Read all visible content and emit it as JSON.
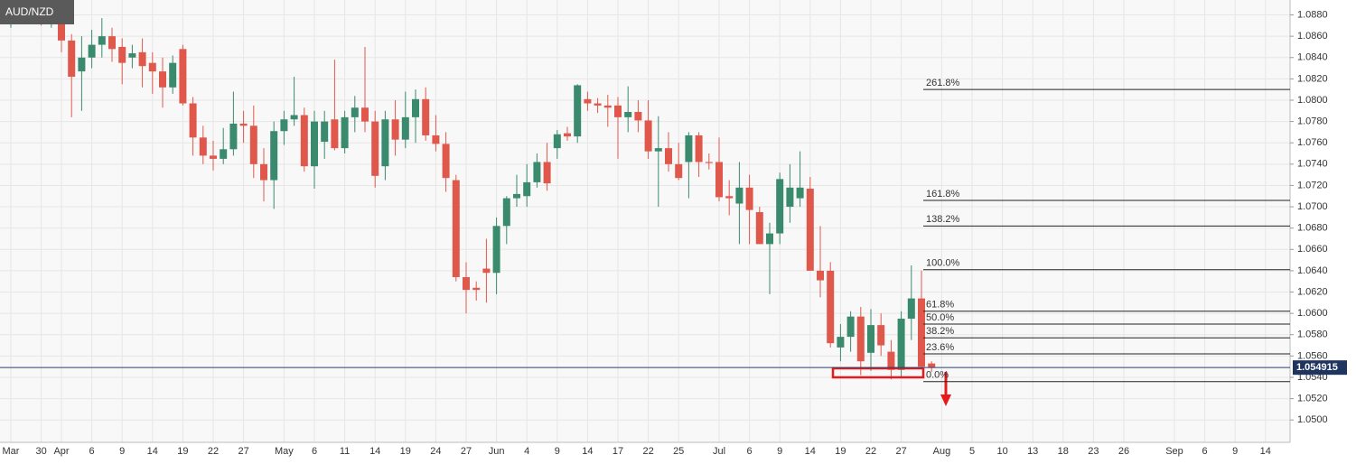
{
  "chart_data": {
    "type": "candlestick",
    "title": "AUD/NZD",
    "categories": [
      "Mar",
      null,
      null,
      "30",
      null,
      "Apr",
      null,
      null,
      "6",
      null,
      null,
      "9",
      null,
      null,
      "14",
      null,
      null,
      "19",
      null,
      null,
      "22",
      null,
      null,
      "27",
      null,
      null,
      null,
      "May",
      null,
      null,
      "6",
      null,
      null,
      "11",
      null,
      null,
      "14",
      null,
      null,
      "19",
      null,
      null,
      "24",
      null,
      null,
      "27",
      null,
      null,
      "Jun",
      null,
      null,
      "4",
      null,
      null,
      "9",
      null,
      null,
      "14",
      null,
      null,
      "17",
      null,
      null,
      "22",
      null,
      null,
      "25",
      null,
      null,
      null,
      "Jul",
      null,
      null,
      "6",
      null,
      null,
      "9",
      null,
      null,
      "14",
      null,
      null,
      "19",
      null,
      null,
      "22",
      null,
      null,
      "27",
      null,
      null,
      null,
      "Aug",
      null,
      null,
      "5",
      null,
      null,
      "10",
      null,
      null,
      "13",
      null,
      null,
      "18",
      null,
      null,
      "23",
      null,
      null,
      "26",
      null,
      null,
      null,
      null,
      "Sep",
      null,
      null,
      "6",
      null,
      null,
      "9",
      null,
      null,
      "14",
      null,
      null
    ],
    "open": [
      1.0878,
      1.0892,
      1.089,
      1.0888,
      1.0876,
      1.0877,
      1.0856,
      1.0827,
      1.084,
      1.0852,
      1.086,
      1.085,
      1.084,
      1.0845,
      1.0835,
      1.0827,
      1.0812,
      1.0848,
      1.0797,
      1.0765,
      1.0748,
      1.0745,
      1.0754,
      1.0778,
      1.0776,
      1.074,
      1.0725,
      1.0771,
      1.0782,
      1.0786,
      1.0738,
      1.0761,
      1.0782,
      1.0755,
      1.0784,
      1.0793,
      1.078,
      1.0738,
      1.0782,
      1.0763,
      1.0784,
      1.0801,
      1.0767,
      1.0759,
      1.0725,
      1.0634,
      1.0624,
      1.0642,
      1.0638,
      1.0682,
      1.0708,
      1.071,
      1.0723,
      1.0742,
      1.0755,
      1.0769,
      1.0766,
      1.0801,
      1.0797,
      1.0795,
      1.0795,
      1.0784,
      1.0789,
      1.0781,
      1.0752,
      1.0755,
      1.074,
      1.0742,
      1.0767,
      1.0742,
      1.0742,
      1.071,
      1.0703,
      1.0718,
      1.0695,
      1.0665,
      1.0675,
      1.07,
      1.0708,
      1.0717,
      1.064,
      1.064,
      1.0568,
      1.0578,
      1.0597,
      1.0563,
      1.0589,
      1.0564,
      1.0547,
      1.0595,
      1.0614,
      1.0553,
      null,
      null,
      null,
      null,
      null,
      null,
      null,
      null,
      null,
      null,
      null,
      null,
      null,
      null,
      null,
      null,
      null,
      null,
      null,
      null,
      null,
      null,
      null,
      null,
      null,
      null,
      null,
      null,
      null,
      null,
      null,
      null,
      null,
      null,
      null
    ],
    "high": [
      1.0894,
      1.0896,
      1.0894,
      1.0892,
      1.089,
      1.0886,
      1.0862,
      1.086,
      1.0866,
      1.0877,
      1.0868,
      1.0858,
      1.0852,
      1.0858,
      1.0845,
      1.084,
      1.0842,
      1.0852,
      1.0803,
      1.0776,
      1.0762,
      1.0774,
      1.0808,
      1.079,
      1.0795,
      1.0755,
      1.078,
      1.079,
      1.0822,
      1.0793,
      1.079,
      1.079,
      1.0838,
      1.079,
      1.0804,
      1.085,
      1.079,
      1.079,
      1.08,
      1.0808,
      1.081,
      1.0812,
      1.0786,
      1.077,
      1.073,
      1.0648,
      1.063,
      1.067,
      1.069,
      1.071,
      1.073,
      1.074,
      1.075,
      1.076,
      1.0772,
      1.0775,
      1.0815,
      1.0808,
      1.0802,
      1.0805,
      1.0803,
      1.0813,
      1.08,
      1.08,
      1.0785,
      1.077,
      1.076,
      1.077,
      1.077,
      1.075,
      1.0765,
      1.0725,
      1.0742,
      1.073,
      1.07,
      1.0685,
      1.0732,
      1.074,
      1.0752,
      1.0728,
      1.0682,
      1.0648,
      1.059,
      1.0602,
      1.0606,
      1.0604,
      1.06,
      1.0575,
      1.0602,
      1.0645,
      1.064,
      1.0555,
      null,
      null,
      null,
      null,
      null,
      null,
      null,
      null,
      null,
      null,
      null,
      null,
      null,
      null,
      null,
      null,
      null,
      null,
      null,
      null,
      null,
      null,
      null,
      null,
      null,
      null,
      null,
      null,
      null,
      null,
      null,
      null,
      null,
      null,
      null
    ],
    "low": [
      1.0868,
      1.088,
      1.0876,
      1.087,
      1.0868,
      1.0845,
      1.0784,
      1.079,
      1.083,
      1.084,
      1.0836,
      1.0815,
      1.083,
      1.0812,
      1.0806,
      1.0793,
      1.0806,
      1.0795,
      1.0748,
      1.074,
      1.0734,
      1.074,
      1.0748,
      1.076,
      1.0727,
      1.0705,
      1.0698,
      1.0758,
      1.0776,
      1.0733,
      1.0717,
      1.0745,
      1.0753,
      1.075,
      1.077,
      1.077,
      1.0718,
      1.0725,
      1.0748,
      1.0755,
      1.076,
      1.0762,
      1.0752,
      1.0714,
      1.063,
      1.06,
      1.0612,
      1.061,
      1.0618,
      1.0665,
      1.07,
      1.07,
      1.0718,
      1.0715,
      1.0745,
      1.0762,
      1.076,
      1.079,
      1.0788,
      1.0775,
      1.0745,
      1.077,
      1.077,
      1.0745,
      1.07,
      1.0733,
      1.0725,
      1.0708,
      1.0728,
      1.0735,
      1.0705,
      1.0692,
      1.0665,
      1.0665,
      1.0665,
      1.0618,
      1.0665,
      1.0685,
      1.07,
      1.064,
      1.0615,
      1.0568,
      1.0555,
      1.0564,
      1.0542,
      1.0546,
      1.056,
      1.0538,
      1.054,
      1.0575,
      1.0548,
      1.0545,
      null,
      null,
      null,
      null,
      null,
      null,
      null,
      null,
      null,
      null,
      null,
      null,
      null,
      null,
      null,
      null,
      null,
      null,
      null,
      null,
      null,
      null,
      null,
      null,
      null,
      null,
      null,
      null,
      null,
      null,
      null,
      null,
      null,
      null,
      null
    ],
    "close": [
      1.089,
      1.0884,
      1.0882,
      1.0876,
      1.0884,
      1.0856,
      1.0822,
      1.084,
      1.0852,
      1.086,
      1.0848,
      1.0835,
      1.0844,
      1.0832,
      1.0827,
      1.0812,
      1.0835,
      1.0797,
      1.0765,
      1.0748,
      1.0745,
      1.0754,
      1.0778,
      1.0776,
      1.074,
      1.0725,
      1.0771,
      1.0782,
      1.0786,
      1.0738,
      1.078,
      1.078,
      1.0755,
      1.0784,
      1.0793,
      1.078,
      1.0729,
      1.0782,
      1.0763,
      1.0784,
      1.0801,
      1.0767,
      1.0759,
      1.0727,
      1.0634,
      1.0622,
      1.0622,
      1.0638,
      1.0682,
      1.0708,
      1.0712,
      1.0723,
      1.0742,
      1.0722,
      1.0768,
      1.0766,
      1.0814,
      1.0797,
      1.0795,
      1.0793,
      1.0784,
      1.0789,
      1.0781,
      1.0752,
      1.0755,
      1.074,
      1.0727,
      1.0767,
      1.0742,
      1.0741,
      1.0709,
      1.0708,
      1.0718,
      1.0697,
      1.0665,
      1.0675,
      1.0726,
      1.0718,
      1.0718,
      1.064,
      1.0631,
      1.0572,
      1.0578,
      1.0597,
      1.0555,
      1.0589,
      1.057,
      1.0547,
      1.0595,
      1.0614,
      1.055,
      1.0549,
      null,
      null,
      null,
      null,
      null,
      null,
      null,
      null,
      null,
      null,
      null,
      null,
      null,
      null,
      null,
      null,
      null,
      null,
      null,
      null,
      null,
      null,
      null,
      null,
      null,
      null,
      null,
      null,
      null,
      null,
      null,
      null,
      null,
      null,
      null
    ],
    "up_color": "#3a8a6e",
    "down_color": "#e0584b",
    "ylim": [
      1.0479,
      1.0894
    ],
    "yticks": [
      {
        "value": 1.05,
        "label": "1.0500"
      },
      {
        "value": 1.052,
        "label": "1.0520"
      },
      {
        "value": 1.054,
        "label": "1.0540"
      },
      {
        "value": 1.056,
        "label": "1.0560"
      },
      {
        "value": 1.058,
        "label": "1.0580"
      },
      {
        "value": 1.06,
        "label": "1.0600"
      },
      {
        "value": 1.062,
        "label": "1.0620"
      },
      {
        "value": 1.064,
        "label": "1.0640"
      },
      {
        "value": 1.066,
        "label": "1.0660"
      },
      {
        "value": 1.068,
        "label": "1.0680"
      },
      {
        "value": 1.07,
        "label": "1.0700"
      },
      {
        "value": 1.072,
        "label": "1.0720"
      },
      {
        "value": 1.074,
        "label": "1.0740"
      },
      {
        "value": 1.076,
        "label": "1.0760"
      },
      {
        "value": 1.078,
        "label": "1.0780"
      },
      {
        "value": 1.08,
        "label": "1.0800"
      },
      {
        "value": 1.082,
        "label": "1.0820"
      },
      {
        "value": 1.084,
        "label": "1.0840"
      },
      {
        "value": 1.086,
        "label": "1.0860"
      },
      {
        "value": 1.088,
        "label": "1.0880"
      }
    ],
    "grid": true,
    "last_price": 1.054915,
    "fib_levels": [
      {
        "label": "261.8%",
        "value": 1.081
      },
      {
        "label": "161.8%",
        "value": 1.0706
      },
      {
        "label": "138.2%",
        "value": 1.0682
      },
      {
        "label": "100.0%",
        "value": 1.0641
      },
      {
        "label": "61.8%",
        "value": 1.0602
      },
      {
        "label": "50.0%",
        "value": 1.059
      },
      {
        "label": "38.2%",
        "value": 1.0577
      },
      {
        "label": "23.6%",
        "value": 1.0562
      },
      {
        "label": "0.0%",
        "value": 1.0536
      }
    ]
  }
}
